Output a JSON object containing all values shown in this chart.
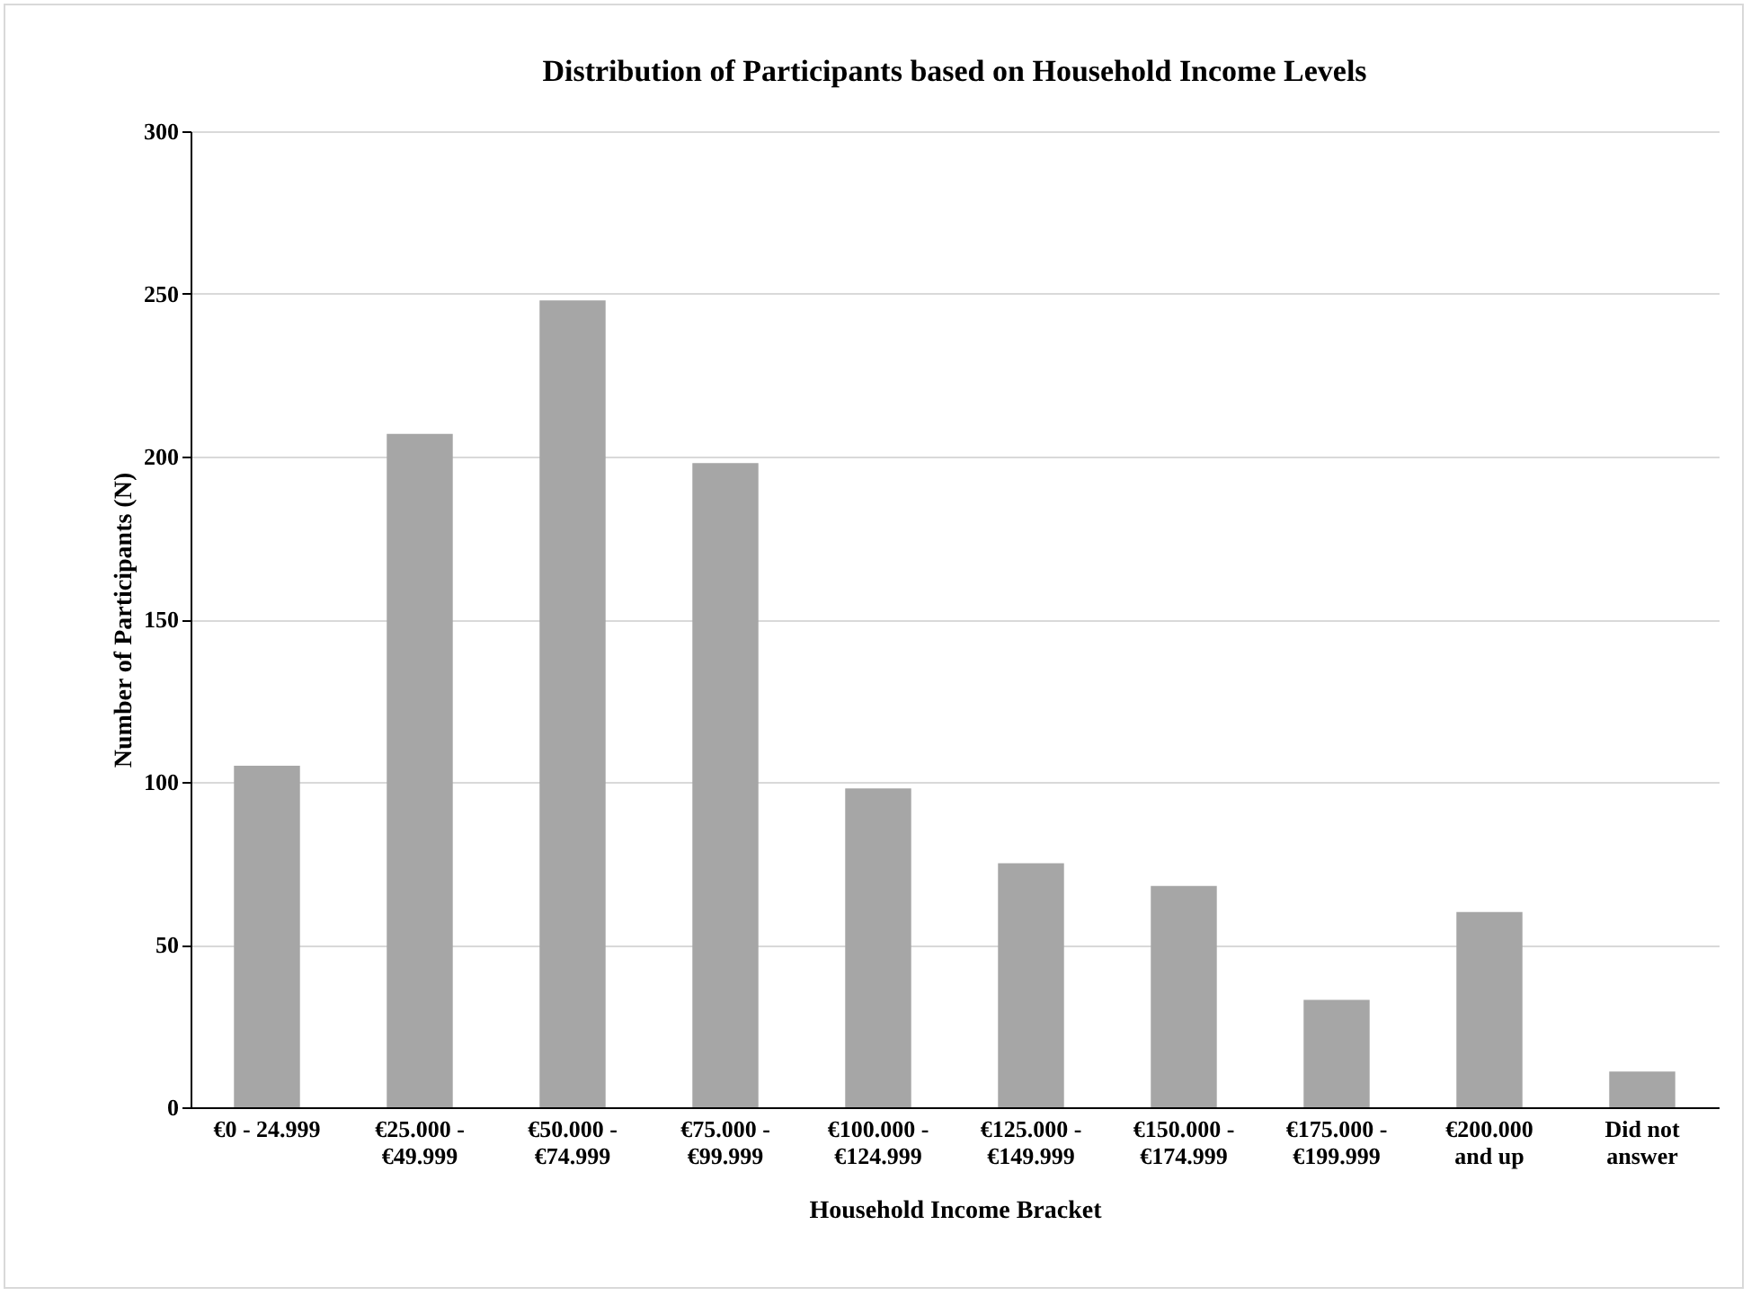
{
  "chart_data": {
    "type": "bar",
    "title": "Distribution of Participants based on Household Income Levels",
    "xlabel": "Household Income Bracket",
    "ylabel": "Number of Participants (N)",
    "categories": [
      "€0 - 24.999",
      "€25.000 - €49.999",
      "€50.000 - €74.999",
      "€75.000 - €99.999",
      "€100.000 - €124.999",
      "€125.000 - €149.999",
      "€150.000 - €174.999",
      "€175.000 - €199.999",
      "€200.000 and up",
      "Did not answer"
    ],
    "values": [
      105,
      207,
      248,
      198,
      98,
      75,
      68,
      33,
      60,
      11
    ],
    "color": "#a6a6a6",
    "ylim": [
      0,
      300
    ],
    "yticks": [
      0,
      50,
      100,
      150,
      200,
      250,
      300
    ],
    "grid": "y"
  }
}
